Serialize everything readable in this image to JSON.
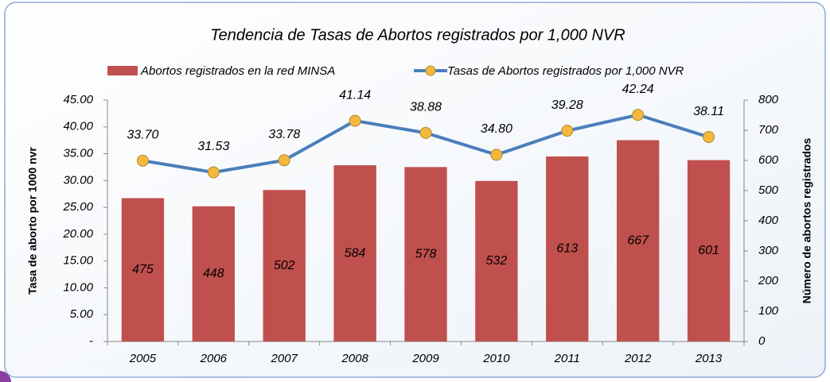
{
  "chart_data": {
    "type": "bar",
    "title": "Tendencia de Tasas de  Abortos registrados por 1,000 NVR",
    "categories": [
      "2005",
      "2006",
      "2007",
      "2008",
      "2009",
      "2010",
      "2011",
      "2012",
      "2013"
    ],
    "series": [
      {
        "name": "Abortos registrados en la red MINSA",
        "type": "bar",
        "axis": "y2",
        "color": "#c0504d",
        "values": [
          475,
          448,
          502,
          584,
          578,
          532,
          613,
          667,
          601
        ]
      },
      {
        "name": "Tasas de  Abortos registrados por 1,000 NVR",
        "type": "line",
        "axis": "y",
        "color": "#4a7ebb",
        "marker_color": "#f5b83d",
        "values": [
          33.7,
          31.53,
          33.78,
          41.14,
          38.88,
          34.8,
          39.28,
          42.24,
          38.11
        ],
        "value_labels": [
          "33.70",
          "31.53",
          "33.78",
          "41.14",
          "38.88",
          "34.80",
          "39.28",
          "42.24",
          "38.11"
        ]
      }
    ],
    "ylabel": "Tasa de aborto por 1000 nvr",
    "y2label": "Número de abortos registrados",
    "ylim": [
      0,
      45
    ],
    "yticks": [
      {
        "value": 0,
        "label": "-"
      },
      {
        "value": 5,
        "label": "5.00"
      },
      {
        "value": 10,
        "label": "10.00"
      },
      {
        "value": 15,
        "label": "15.00"
      },
      {
        "value": 20,
        "label": "20.00"
      },
      {
        "value": 25,
        "label": "25.00"
      },
      {
        "value": 30,
        "label": "30.00"
      },
      {
        "value": 35,
        "label": "35.00"
      },
      {
        "value": 40,
        "label": "40.00"
      },
      {
        "value": 45,
        "label": "45.00"
      }
    ],
    "y2lim": [
      0,
      800
    ],
    "y2ticks": [
      0,
      100,
      200,
      300,
      400,
      500,
      600,
      700,
      800
    ],
    "legend": "top"
  }
}
